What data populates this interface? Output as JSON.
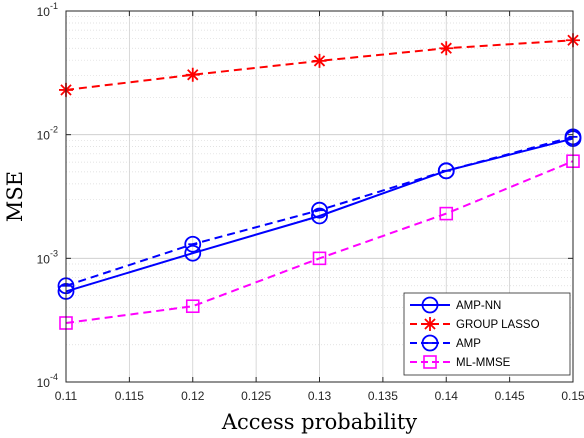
{
  "chart_data": {
    "type": "line",
    "xlabel": "Access probability",
    "ylabel": "MSE",
    "xlim": [
      0.11,
      0.15
    ],
    "ylim": [
      0.0001,
      0.1
    ],
    "yscale": "log",
    "grid": true,
    "legend_position": "bottom-right",
    "x_ticks": [
      "0.11",
      "0.115",
      "0.12",
      "0.125",
      "0.13",
      "0.135",
      "0.14",
      "0.145",
      "0.15"
    ],
    "y_ticks": [
      {
        "base": "10",
        "exp": "-4"
      },
      {
        "base": "10",
        "exp": "-3"
      },
      {
        "base": "10",
        "exp": "-2"
      },
      {
        "base": "10",
        "exp": "-1"
      }
    ],
    "x": [
      0.11,
      0.12,
      0.13,
      0.14,
      0.15
    ],
    "series": [
      {
        "name": "AMP-NN",
        "color": "#0000ff",
        "dash": "solid",
        "marker": "circle",
        "values": [
          0.00054,
          0.0011,
          0.0022,
          0.0051,
          0.0093
        ]
      },
      {
        "name": "GROUP LASSO",
        "color": "#ff0000",
        "dash": "dashed",
        "marker": "star",
        "values": [
          0.023,
          0.0305,
          0.0395,
          0.05,
          0.058
        ]
      },
      {
        "name": "AMP",
        "color": "#0000ff",
        "dash": "dashed",
        "marker": "circle-dash",
        "values": [
          0.0006,
          0.0013,
          0.00245,
          0.0051,
          0.0096
        ]
      },
      {
        "name": "ML-MMSE",
        "color": "#ff00ff",
        "dash": "dashed",
        "marker": "square",
        "values": [
          0.0003,
          0.00041,
          0.001,
          0.0023,
          0.0061
        ]
      }
    ]
  }
}
